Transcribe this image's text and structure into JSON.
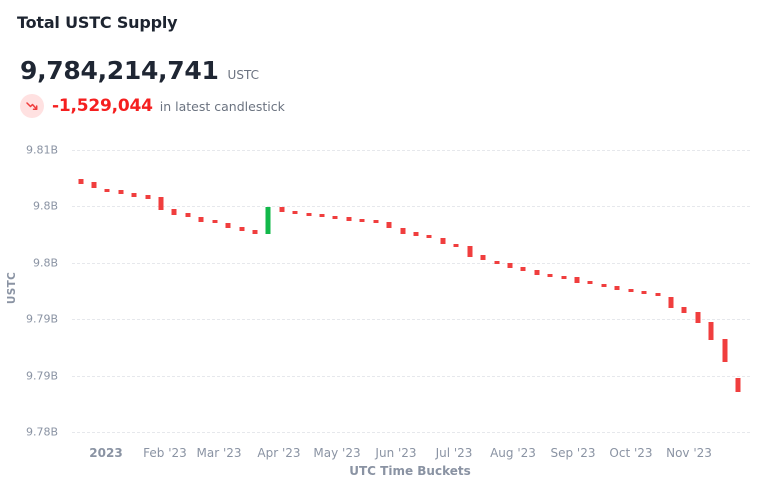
{
  "header": {
    "title": "Total USTC Supply",
    "value": "9,784,214,741",
    "unit": "USTC",
    "change": "-1,529,044",
    "change_caption": "in latest candlestick",
    "trend_icon": "trending-down-icon"
  },
  "colors": {
    "down": "#f03e3e",
    "up": "#12b84a",
    "change_text": "#f51f1f",
    "icon_bg": "#ffe1e1",
    "axis_text": "#8a93a3",
    "grid": "#e6e8ec"
  },
  "chart_data": {
    "type": "candlestick",
    "title": "Total USTC Supply",
    "xlabel": "UTC Time Buckets",
    "ylabel": "USTC",
    "ylim": [
      9780000000,
      9810000000
    ],
    "y_ticks": [
      "9.81B",
      "9.8B",
      "9.8B",
      "9.79B",
      "9.79B",
      "9.78B"
    ],
    "x_ticks": [
      "2023",
      "Feb '23",
      "Mar '23",
      "Apr '23",
      "May '23",
      "Jun '23",
      "Jul '23",
      "Aug '23",
      "Sep '23",
      "Oct '23",
      "Nov '23"
    ],
    "grid": true,
    "interval": "weekly",
    "candles": [
      {
        "open": 9806916000,
        "close": 9806383000,
        "dir": "down"
      },
      {
        "open": 9806596000,
        "close": 9805957000,
        "dir": "down"
      },
      {
        "open": 9805851000,
        "close": 9805532000,
        "dir": "down"
      },
      {
        "open": 9805745000,
        "close": 9805319000,
        "dir": "down"
      },
      {
        "open": 9805426000,
        "close": 9805000000,
        "dir": "down"
      },
      {
        "open": 9805213000,
        "close": 9804787000,
        "dir": "down"
      },
      {
        "open": 9805000000,
        "close": 9803617000,
        "dir": "down"
      },
      {
        "open": 9803723000,
        "close": 9803085000,
        "dir": "down"
      },
      {
        "open": 9803298000,
        "close": 9802872000,
        "dir": "down"
      },
      {
        "open": 9802872000,
        "close": 9802340000,
        "dir": "down"
      },
      {
        "open": 9802553000,
        "close": 9802234000,
        "dir": "down"
      },
      {
        "open": 9802234000,
        "close": 9801702000,
        "dir": "down"
      },
      {
        "open": 9801809000,
        "close": 9801383000,
        "dir": "down"
      },
      {
        "open": 9801489000,
        "close": 9801064000,
        "dir": "down"
      },
      {
        "open": 9801064000,
        "close": 9803936000,
        "dir": "up"
      },
      {
        "open": 9803936000,
        "close": 9803404000,
        "dir": "down"
      },
      {
        "open": 9803511000,
        "close": 9803191000,
        "dir": "down"
      },
      {
        "open": 9803298000,
        "close": 9802979000,
        "dir": "down"
      },
      {
        "open": 9803191000,
        "close": 9802872000,
        "dir": "down"
      },
      {
        "open": 9802979000,
        "close": 9802660000,
        "dir": "down"
      },
      {
        "open": 9802872000,
        "close": 9802447000,
        "dir": "down"
      },
      {
        "open": 9802660000,
        "close": 9802340000,
        "dir": "down"
      },
      {
        "open": 9802553000,
        "close": 9802234000,
        "dir": "down"
      },
      {
        "open": 9802340000,
        "close": 9801702000,
        "dir": "down"
      },
      {
        "open": 9801702000,
        "close": 9801064000,
        "dir": "down"
      },
      {
        "open": 9801277000,
        "close": 9800851000,
        "dir": "down"
      },
      {
        "open": 9800957000,
        "close": 9800638000,
        "dir": "down"
      },
      {
        "open": 9800638000,
        "close": 9800000000,
        "dir": "down"
      },
      {
        "open": 9800000000,
        "close": 9799681000,
        "dir": "down"
      },
      {
        "open": 9799787000,
        "close": 9798617000,
        "dir": "down"
      },
      {
        "open": 9798830000,
        "close": 9798298000,
        "dir": "down"
      },
      {
        "open": 9798191000,
        "close": 9797872000,
        "dir": "down"
      },
      {
        "open": 9797979000,
        "close": 9797447000,
        "dir": "down"
      },
      {
        "open": 9797553000,
        "close": 9797128000,
        "dir": "down"
      },
      {
        "open": 9797234000,
        "close": 9796702000,
        "dir": "down"
      },
      {
        "open": 9796809000,
        "close": 9796489000,
        "dir": "down"
      },
      {
        "open": 9796596000,
        "close": 9796383000,
        "dir": "down"
      },
      {
        "open": 9796489000,
        "close": 9795851000,
        "dir": "down"
      },
      {
        "open": 9796064000,
        "close": 9795745000,
        "dir": "down"
      },
      {
        "open": 9795745000,
        "close": 9795426000,
        "dir": "down"
      },
      {
        "open": 9795532000,
        "close": 9795106000,
        "dir": "down"
      },
      {
        "open": 9795213000,
        "close": 9794894000,
        "dir": "down"
      },
      {
        "open": 9795000000,
        "close": 9794681000,
        "dir": "down"
      },
      {
        "open": 9794787000,
        "close": 9794468000,
        "dir": "down"
      },
      {
        "open": 9794362000,
        "close": 9793191000,
        "dir": "down"
      },
      {
        "open": 9793298000,
        "close": 9792660000,
        "dir": "down"
      },
      {
        "open": 9792766000,
        "close": 9791596000,
        "dir": "down"
      },
      {
        "open": 9791702000,
        "close": 9789787000,
        "dir": "down"
      },
      {
        "open": 9789894000,
        "close": 9787447000,
        "dir": "down"
      },
      {
        "open": 9785743785,
        "close": 9784214741,
        "dir": "down"
      }
    ]
  }
}
